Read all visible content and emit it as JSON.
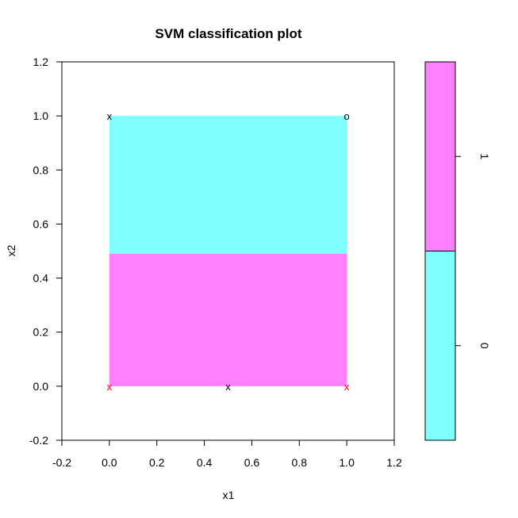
{
  "chart_data": {
    "type": "heatmap",
    "title": "SVM classification plot",
    "xlabel": "x1",
    "ylabel": "x2",
    "xlim": [
      -0.2,
      1.2
    ],
    "ylim": [
      -0.2,
      1.2
    ],
    "x_ticks": [
      "-0.2",
      "0.0",
      "0.2",
      "0.4",
      "0.6",
      "0.8",
      "1.0",
      "1.2"
    ],
    "y_ticks": [
      "-0.2",
      "0.0",
      "0.2",
      "0.4",
      "0.6",
      "0.8",
      "1.0",
      "1.2"
    ],
    "regions": [
      {
        "class": "1",
        "x": [
          0.0,
          1.0
        ],
        "y": [
          0.0,
          0.49
        ],
        "color": "#FF80FF"
      },
      {
        "class": "0",
        "x": [
          0.0,
          1.0
        ],
        "y": [
          0.49,
          1.0
        ],
        "color": "#80FFFF"
      }
    ],
    "points": [
      {
        "x": 0.0,
        "y": 1.0,
        "symbol": "x",
        "color": "#000000"
      },
      {
        "x": 1.0,
        "y": 1.0,
        "symbol": "o",
        "color": "#000000"
      },
      {
        "x": 0.0,
        "y": 0.0,
        "symbol": "x",
        "color": "#FF0000"
      },
      {
        "x": 0.5,
        "y": 0.0,
        "symbol": "x",
        "color": "#000000"
      },
      {
        "x": 1.0,
        "y": 0.0,
        "symbol": "x",
        "color": "#FF0000"
      }
    ],
    "legend": {
      "placement": "right",
      "entries": [
        {
          "label": "1",
          "color": "#FF80FF"
        },
        {
          "label": "0",
          "color": "#80FFFF"
        }
      ]
    },
    "grid": false
  }
}
